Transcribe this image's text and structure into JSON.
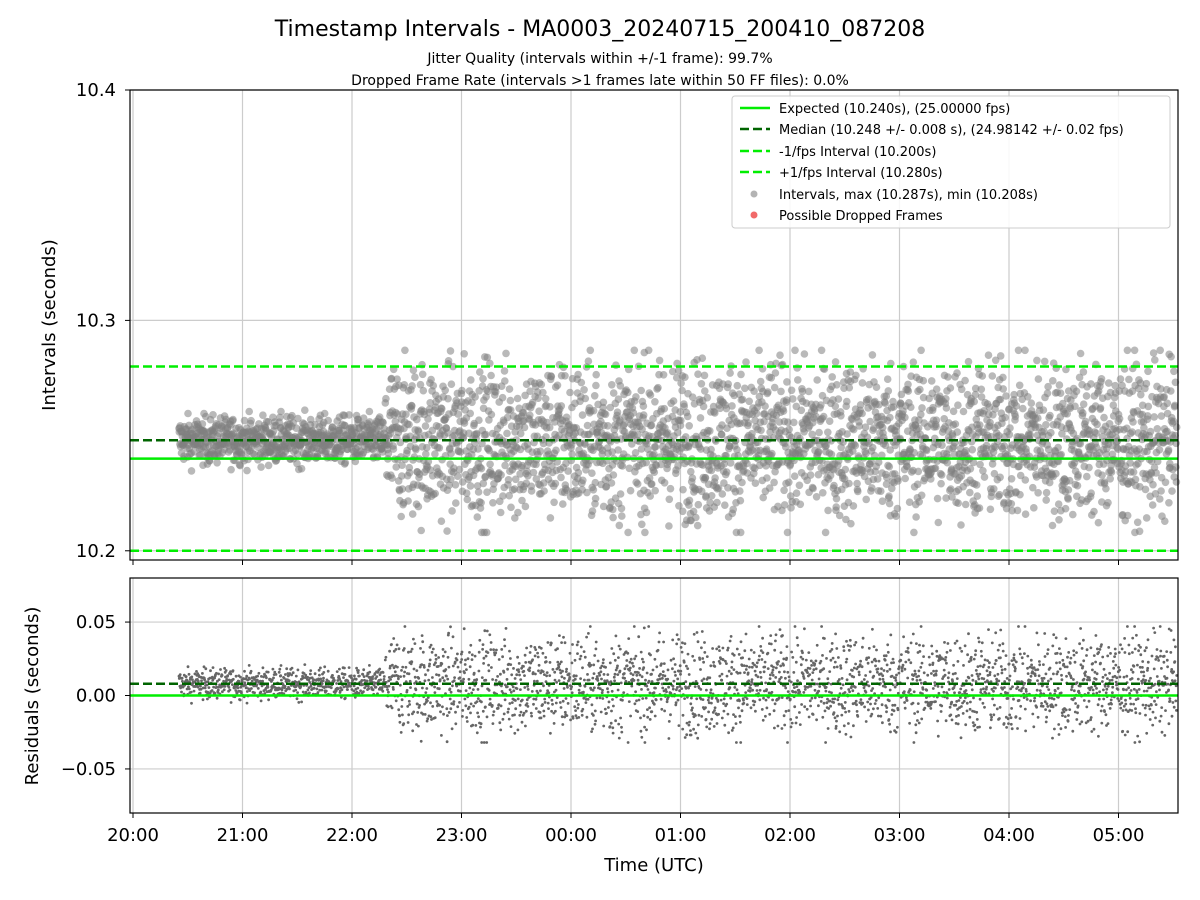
{
  "chart_data": {
    "title": "Timestamp Intervals - MA0003_20240715_200410_087208",
    "subtitle_lines": [
      "Jitter Quality (intervals within +/-1 frame): 99.7%",
      "Dropped Frame Rate (intervals >1 frames late within 50 FF files): 0.0%"
    ],
    "type": "scatter",
    "x_axis": {
      "label": "Time (UTC)",
      "tick_labels": [
        "20:00",
        "21:00",
        "22:00",
        "23:00",
        "00:00",
        "01:00",
        "02:00",
        "03:00",
        "04:00",
        "05:00"
      ],
      "range_hours_from_start": [
        0,
        9.55
      ]
    },
    "top_panel": {
      "ylabel": "Intervals (seconds)",
      "ylim": [
        10.196,
        10.4
      ],
      "yticks": [
        "10.2",
        "10.3",
        "10.4"
      ],
      "grid": true,
      "legend_position": "top-right",
      "lines": [
        {
          "name": "Expected (10.240s), (25.00000 fps)",
          "y": 10.24,
          "style": "solid",
          "color": "#00ee00"
        },
        {
          "name": "Median (10.248 +/- 0.008 s), (24.98142 +/- 0.02 fps)",
          "y": 10.248,
          "style": "dashed",
          "color": "#006400"
        },
        {
          "name": "-1/fps Interval (10.200s)",
          "y": 10.2,
          "style": "dashed",
          "color": "#00ee00"
        },
        {
          "name": "+1/fps Interval (10.280s)",
          "y": 10.28,
          "style": "dashed",
          "color": "#00ee00"
        }
      ],
      "scatter_series": [
        {
          "name": "Intervals, max (10.287s), min (10.208s)",
          "color": "#808080",
          "max": 10.287,
          "min": 10.208
        },
        {
          "name": "Possible Dropped Frames",
          "color": "#ee4444",
          "count": 0
        }
      ]
    },
    "bottom_panel": {
      "ylabel": "Residuals (seconds)",
      "ylim": [
        -0.08,
        0.08
      ],
      "yticks": [
        "0.05",
        "0.00",
        "−0.05"
      ],
      "grid": true,
      "lines": [
        {
          "y": 0.0,
          "style": "solid",
          "color": "#00ee00"
        },
        {
          "y": 0.008,
          "style": "dashed",
          "color": "#006400"
        }
      ]
    },
    "data_summary": {
      "first_sample_hours": 0.42,
      "median_interval": 10.248,
      "quiet_period_hours": [
        0.42,
        2.3
      ],
      "quiet_spread_s": 0.012,
      "active_spread_s": 0.04
    }
  }
}
